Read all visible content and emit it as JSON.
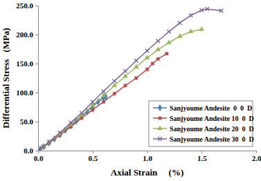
{
  "chart_data": {
    "type": "line",
    "x_label": "Axial Strain     (%)",
    "y_label": "Differential Stress   (MPa)",
    "xlim": [
      0,
      2
    ],
    "xticks": [
      {
        "value": 0,
        "label": "0.0"
      },
      {
        "value": 0.5,
        "label": "0.5"
      },
      {
        "value": 1,
        "label": "1.0"
      },
      {
        "value": 1.5,
        "label": "1.5"
      },
      {
        "value": 2,
        "label": "2.0"
      }
    ],
    "ylim": [
      0,
      250
    ],
    "yticks": [
      {
        "value": 0,
        "label": "0.0"
      },
      {
        "value": 50,
        "label": "50.0"
      },
      {
        "value": 100,
        "label": "100.0"
      },
      {
        "value": 150,
        "label": "150.0"
      },
      {
        "value": 200,
        "label": "200.0"
      },
      {
        "value": 250,
        "label": "250.0"
      }
    ],
    "grid": false,
    "legend": "lower right",
    "series": [
      {
        "name": "Sanjyoume Andesite  0  0  D",
        "color": "#4a7ebb",
        "marker": "diamond",
        "line_style": "solid",
        "x": [
          0,
          0.02,
          0.05,
          0.1,
          0.15,
          0.2,
          0.25,
          0.3,
          0.35,
          0.4,
          0.45,
          0.5,
          0.55,
          0.6,
          0.62
        ],
        "values": [
          0,
          3,
          7,
          13,
          20,
          27,
          35,
          43,
          51,
          59,
          67,
          76,
          84,
          91,
          93
        ]
      },
      {
        "name": "Sanjyoume Andesite 10  0  D",
        "color": "#be4b48",
        "marker": "square",
        "line_style": "solid",
        "x": [
          0,
          0.05,
          0.1,
          0.2,
          0.3,
          0.4,
          0.5,
          0.6,
          0.7,
          0.8,
          0.9,
          1.0,
          1.05,
          1.1,
          1.18
        ],
        "values": [
          0,
          6,
          13,
          27,
          41,
          56,
          70,
          84,
          98,
          112,
          125,
          140,
          150,
          158,
          167
        ]
      },
      {
        "name": "Sanjyoume Andesite 20  0  D",
        "color": "#98b954",
        "marker": "triangle",
        "line_style": "solid",
        "x": [
          0,
          0.05,
          0.1,
          0.2,
          0.3,
          0.4,
          0.5,
          0.6,
          0.7,
          0.8,
          0.9,
          1.0,
          1.1,
          1.2,
          1.3,
          1.4,
          1.5
        ],
        "values": [
          0,
          7,
          14,
          29,
          45,
          61,
          78,
          95,
          112,
          128,
          144,
          160,
          174,
          186,
          197,
          205,
          209
        ]
      },
      {
        "name": "Sanjyoume Andesite 30  0  D",
        "color": "#7d60a0",
        "marker": "x",
        "line_style": "solid",
        "x": [
          0,
          0.05,
          0.1,
          0.2,
          0.3,
          0.4,
          0.5,
          0.6,
          0.7,
          0.8,
          0.9,
          1.0,
          1.1,
          1.2,
          1.3,
          1.4,
          1.5,
          1.55,
          1.68
        ],
        "values": [
          0,
          7,
          15,
          31,
          48,
          65,
          84,
          102,
          120,
          137,
          155,
          172,
          189,
          205,
          220,
          233,
          242,
          244,
          241
        ]
      }
    ]
  }
}
